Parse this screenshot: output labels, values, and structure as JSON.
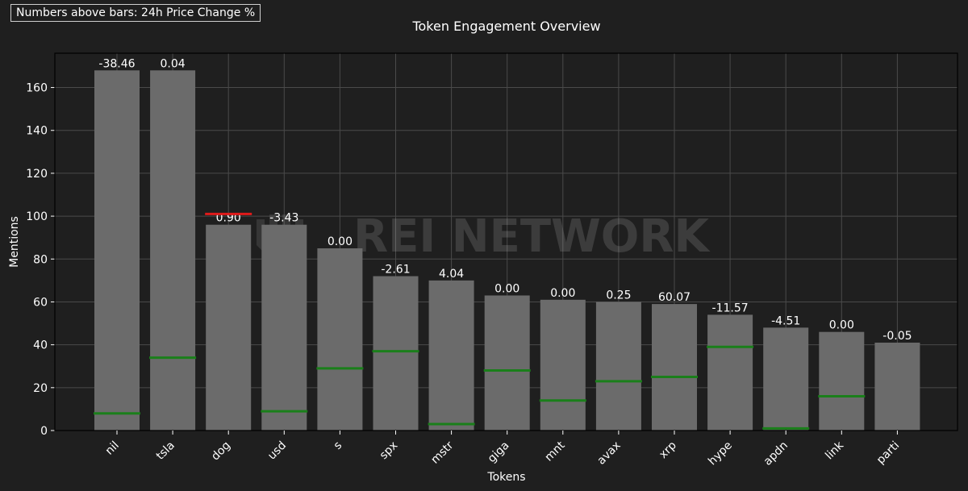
{
  "note": "Numbers above bars: 24h Price Change %",
  "watermark": "REI NETWORK",
  "colors": {
    "background": "#1f1f1f",
    "plot_background": "#1f1f1f",
    "bar": "#6b6b6b",
    "grid": "#4a4a4a",
    "marker_green": "#1a7f1a",
    "marker_red": "#e01a1a",
    "text": "#ffffff"
  },
  "chart_data": {
    "type": "bar",
    "title": "Token Engagement Overview",
    "xlabel": "Tokens",
    "ylabel": "Mentions",
    "ylim": [
      0,
      176
    ],
    "yticks": [
      0,
      20,
      40,
      60,
      80,
      100,
      120,
      140,
      160
    ],
    "grid": true,
    "categories": [
      "nil",
      "tsla",
      "dog",
      "usd",
      "s",
      "spx",
      "mstr",
      "giga",
      "mnt",
      "avax",
      "xrp",
      "hype",
      "apdn",
      "link",
      "parti"
    ],
    "values": [
      168,
      168,
      96,
      96,
      85,
      72,
      70,
      63,
      61,
      60,
      59,
      54,
      48,
      46,
      41
    ],
    "bar_labels": [
      "-38.46",
      "0.04",
      "0.90",
      "-3.43",
      "0.00",
      "-2.61",
      "4.04",
      "0.00",
      "0.00",
      "0.25",
      "60.07",
      "-11.57",
      "-4.51",
      "0.00",
      "-0.05"
    ],
    "marker_series": {
      "values": [
        8,
        34,
        101,
        9,
        29,
        37,
        3,
        28,
        14,
        23,
        25,
        39,
        1,
        16,
        null
      ],
      "colors": [
        "green",
        "green",
        "red",
        "green",
        "green",
        "green",
        "green",
        "green",
        "green",
        "green",
        "green",
        "green",
        "green",
        "green",
        null
      ]
    }
  }
}
